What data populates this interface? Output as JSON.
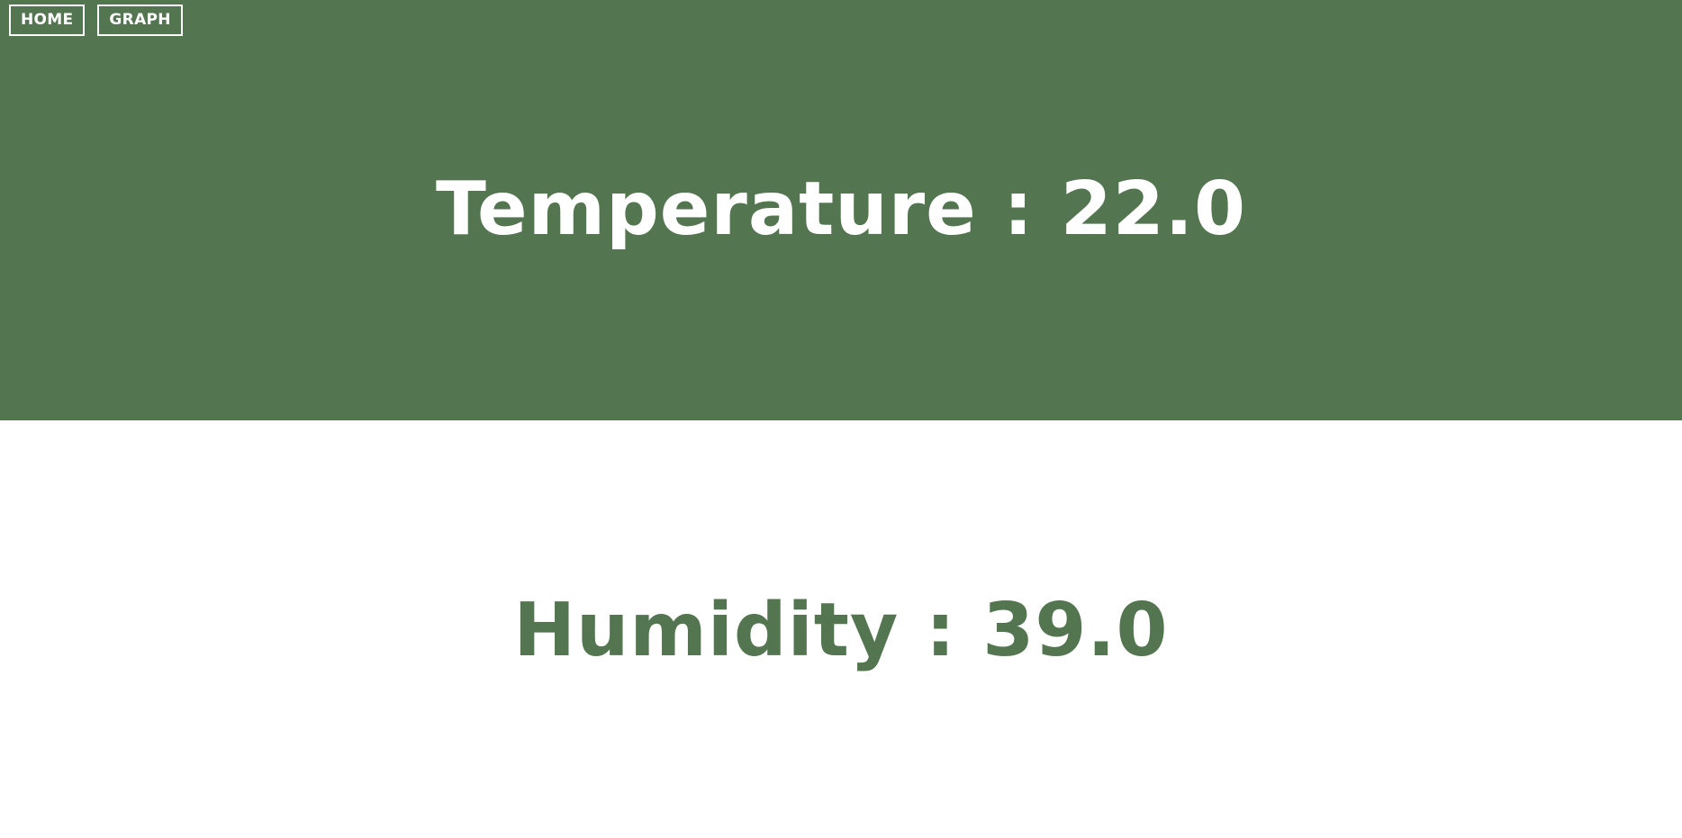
{
  "nav": {
    "home_label": "HOME",
    "graph_label": "GRAPH"
  },
  "readings": {
    "temperature_label": "Temperature",
    "temperature_separator": " : ",
    "temperature_value": "22.0",
    "humidity_label": "Humidity",
    "humidity_separator": " : ",
    "humidity_value": "39.0"
  },
  "colors": {
    "accent_green": "#53754f",
    "white": "#ffffff"
  }
}
